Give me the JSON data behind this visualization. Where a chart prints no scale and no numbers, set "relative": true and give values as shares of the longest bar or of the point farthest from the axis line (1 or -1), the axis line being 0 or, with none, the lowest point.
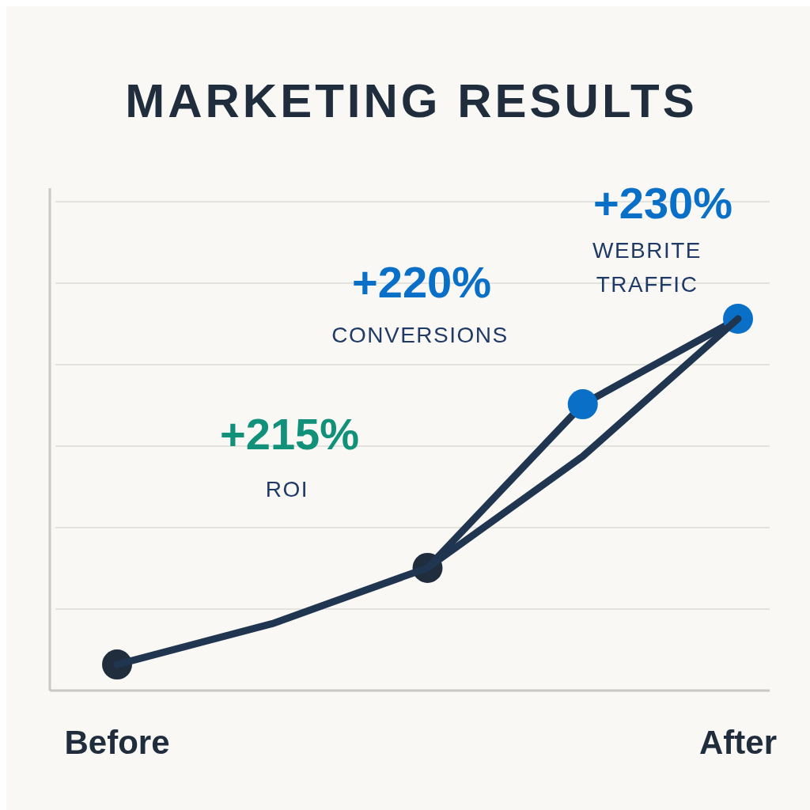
{
  "chart_data": {
    "type": "line",
    "title": "MARKETING RESULTS",
    "relative": true,
    "grid": "y",
    "categories": [
      "Before",
      null,
      null,
      null,
      "After"
    ],
    "series": [
      {
        "color": "#1f3550",
        "marker": "circle",
        "colors": [
          "#1f2d3d",
          null,
          "#1f2d3d",
          "#0a6fc6",
          "#0a6fc6"
        ],
        "values": [
          0.07,
          0.18,
          0.33,
          0.77,
          1.0
        ]
      },
      {
        "color": "#1f3550",
        "marker": "none",
        "values": [
          null,
          null,
          0.33,
          0.63,
          1.0
        ]
      }
    ],
    "annotations": [
      "+215%",
      "ROI",
      "+220%",
      "CONVERSIONS",
      "+230%",
      "WEBRITE TRAFFIC"
    ]
  }
}
